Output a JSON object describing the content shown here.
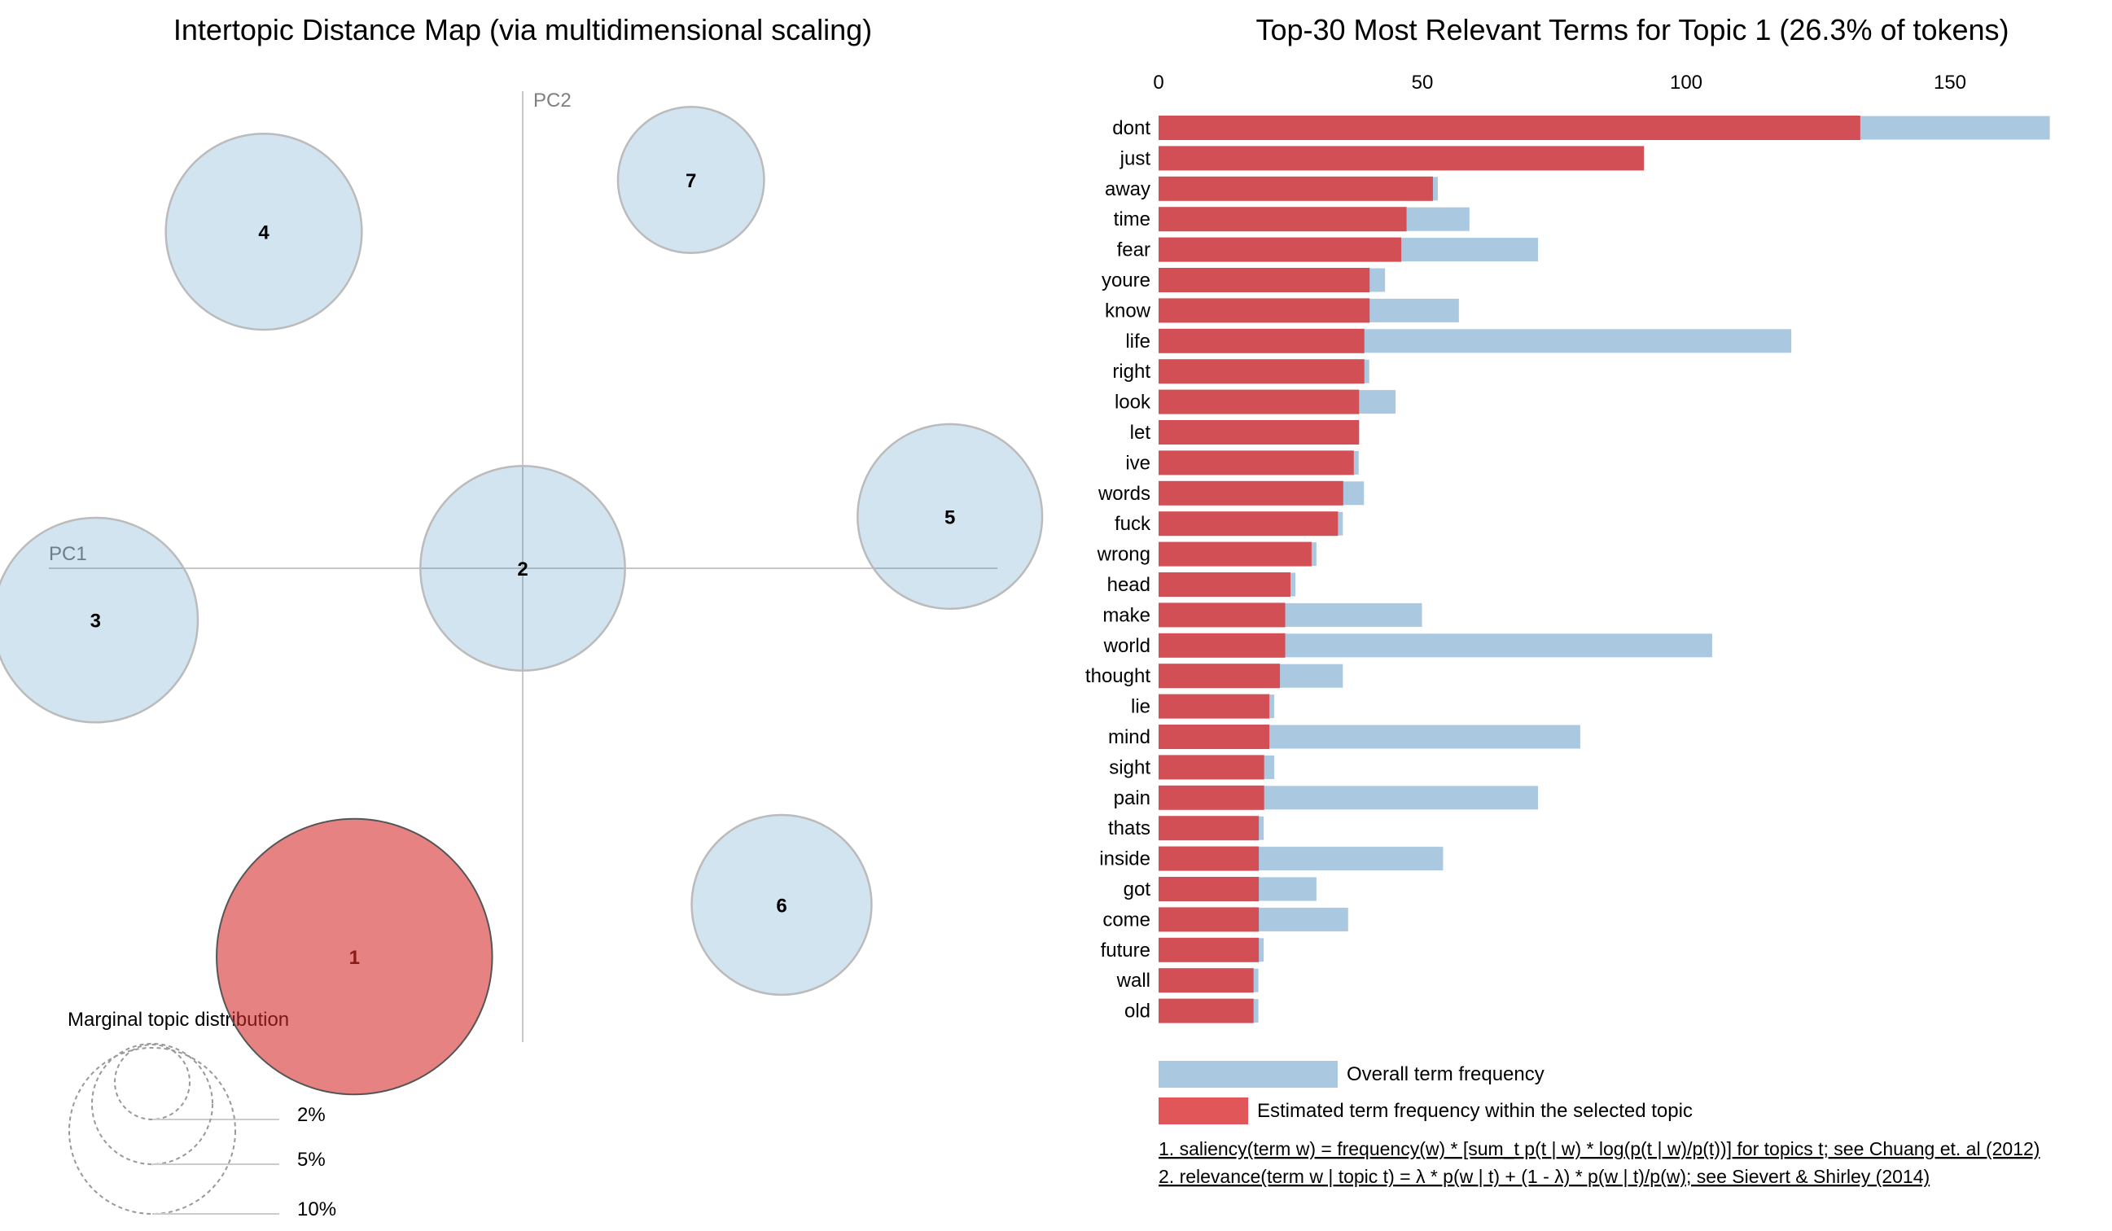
{
  "colors": {
    "topic_default": "#1f77b4",
    "topic_selected": "#d62728",
    "overall_bar": "#aac8e0",
    "topic_bar": "#d24f55",
    "legend_topic_bar": "#e15759"
  },
  "left_panel": {
    "title": "Intertopic Distance Map (via multidimensional scaling)",
    "pc1_label": "PC1",
    "pc2_label": "PC2",
    "selected_topic": 1,
    "legend": {
      "title": "Marginal topic distribution",
      "sizes": [
        "2%",
        "5%",
        "10%"
      ]
    }
  },
  "right_panel": {
    "title": "Top-30 Most Relevant Terms for Topic 1 (26.3% of tokens)",
    "legend": {
      "overall": "Overall term frequency",
      "estimated": "Estimated term frequency within the selected topic"
    },
    "footnotes": [
      "1. saliency(term w) = frequency(w) * [sum_t p(t | w) * log(p(t | w)/p(t))] for topics t; see Chuang et. al (2012)",
      "2. relevance(term w | topic t) = λ * p(w | t) + (1 - λ) * p(w | t)/p(w); see Sievert & Shirley (2014)"
    ]
  },
  "chart_data": [
    {
      "type": "scatter",
      "title": "Intertopic Distance Map (via multidimensional scaling)",
      "xlabel": "PC1",
      "ylabel": "PC2",
      "note": "bubble chart; marker area proportional to marginal topic distribution",
      "topics": [
        {
          "id": 1,
          "pc1": -0.13,
          "pc2": -0.3,
          "share_pct": 26.3,
          "selected": true
        },
        {
          "id": 2,
          "pc1": 0.0,
          "pc2": 0.0,
          "share_pct": 14.5,
          "selected": false
        },
        {
          "id": 3,
          "pc1": -0.33,
          "pc2": -0.04,
          "share_pct": 14.5,
          "selected": false
        },
        {
          "id": 4,
          "pc1": -0.2,
          "pc2": 0.26,
          "share_pct": 13.3,
          "selected": false
        },
        {
          "id": 5,
          "pc1": 0.33,
          "pc2": 0.04,
          "share_pct": 11.8,
          "selected": false
        },
        {
          "id": 6,
          "pc1": 0.2,
          "pc2": -0.26,
          "share_pct": 11.2,
          "selected": false
        },
        {
          "id": 7,
          "pc1": 0.13,
          "pc2": 0.3,
          "share_pct": 7.4,
          "selected": false
        }
      ],
      "size_legend": [
        "2%",
        "5%",
        "10%"
      ]
    },
    {
      "type": "bar",
      "orientation": "horizontal",
      "title": "Top-30 Most Relevant Terms for Topic 1 (26.3% of tokens)",
      "xlim": [
        0,
        170
      ],
      "xticks": [
        0,
        50,
        100,
        150
      ],
      "categories": [
        "dont",
        "just",
        "away",
        "time",
        "fear",
        "youre",
        "know",
        "life",
        "right",
        "look",
        "let",
        "ive",
        "words",
        "fuck",
        "wrong",
        "head",
        "make",
        "world",
        "thought",
        "lie",
        "mind",
        "sight",
        "pain",
        "thats",
        "inside",
        "got",
        "come",
        "future",
        "wall",
        "old"
      ],
      "series": [
        {
          "name": "Overall term frequency",
          "values": [
            169,
            92,
            53,
            59,
            72,
            43,
            57,
            120,
            40,
            45,
            38,
            38,
            39,
            35,
            30,
            26,
            50,
            105,
            35,
            22,
            80,
            22,
            72,
            20,
            54,
            30,
            36,
            20,
            19,
            19
          ]
        },
        {
          "name": "Estimated term frequency within the selected topic",
          "values": [
            133,
            92,
            52,
            47,
            46,
            40,
            40,
            39,
            39,
            38,
            38,
            37,
            35,
            34,
            29,
            25,
            24,
            24,
            23,
            21,
            21,
            20,
            20,
            19,
            19,
            19,
            19,
            19,
            18,
            18
          ]
        }
      ]
    }
  ]
}
